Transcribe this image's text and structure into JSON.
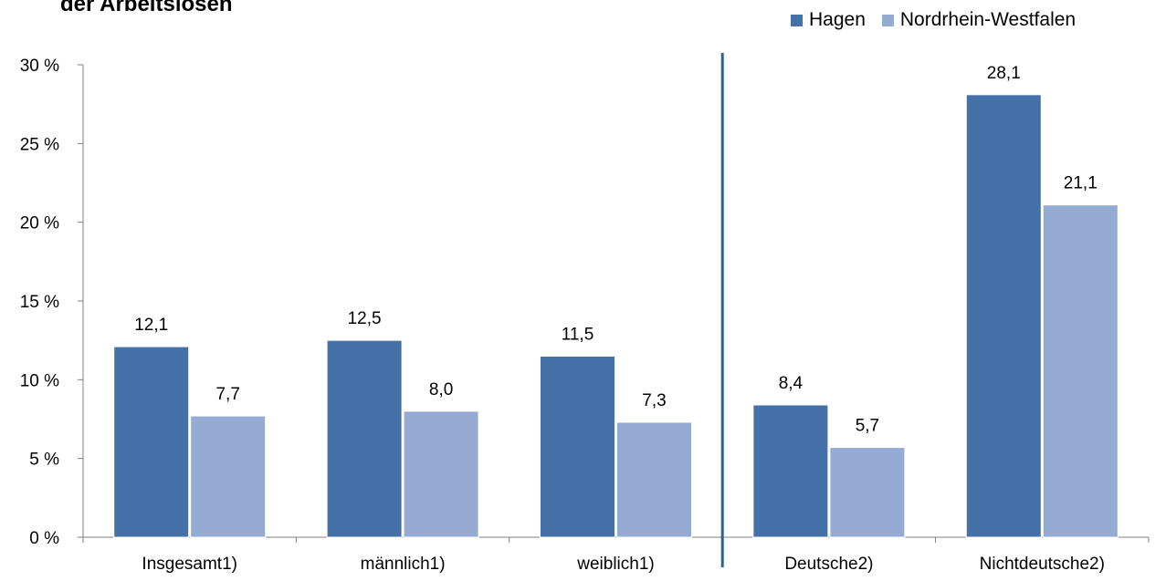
{
  "chart_data": {
    "type": "bar",
    "title": "der Arbeitslosen",
    "categories": [
      "Insgesamt1)",
      "männlich1)",
      "weiblich1)",
      "Deutsche2)",
      "Nichtdeutsche2)"
    ],
    "series": [
      {
        "name": "Hagen",
        "color": "#4472a8",
        "values": [
          12.1,
          12.5,
          11.5,
          8.4,
          28.1
        ],
        "labels": [
          "12,1",
          "12,5",
          "11,5",
          "8,4",
          "28,1"
        ]
      },
      {
        "name": "Nordrhein-Westfalen",
        "color": "#95abd4",
        "values": [
          7.7,
          8.0,
          7.3,
          5.7,
          21.1
        ],
        "labels": [
          "7,7",
          "8,0",
          "7,3",
          "5,7",
          "21,1"
        ]
      }
    ],
    "ylim": [
      0,
      30
    ],
    "yticks": [
      0,
      5,
      10,
      15,
      20,
      25,
      30
    ],
    "ytick_labels": [
      "0 %",
      "5 %",
      "10 %",
      "15 %",
      "20 %",
      "25 %",
      "30 %"
    ],
    "xlabel": "",
    "ylabel": "",
    "grid": false,
    "legend_position": "top-right",
    "divider_after_category": 2,
    "divider_color": "#2f5f95"
  }
}
